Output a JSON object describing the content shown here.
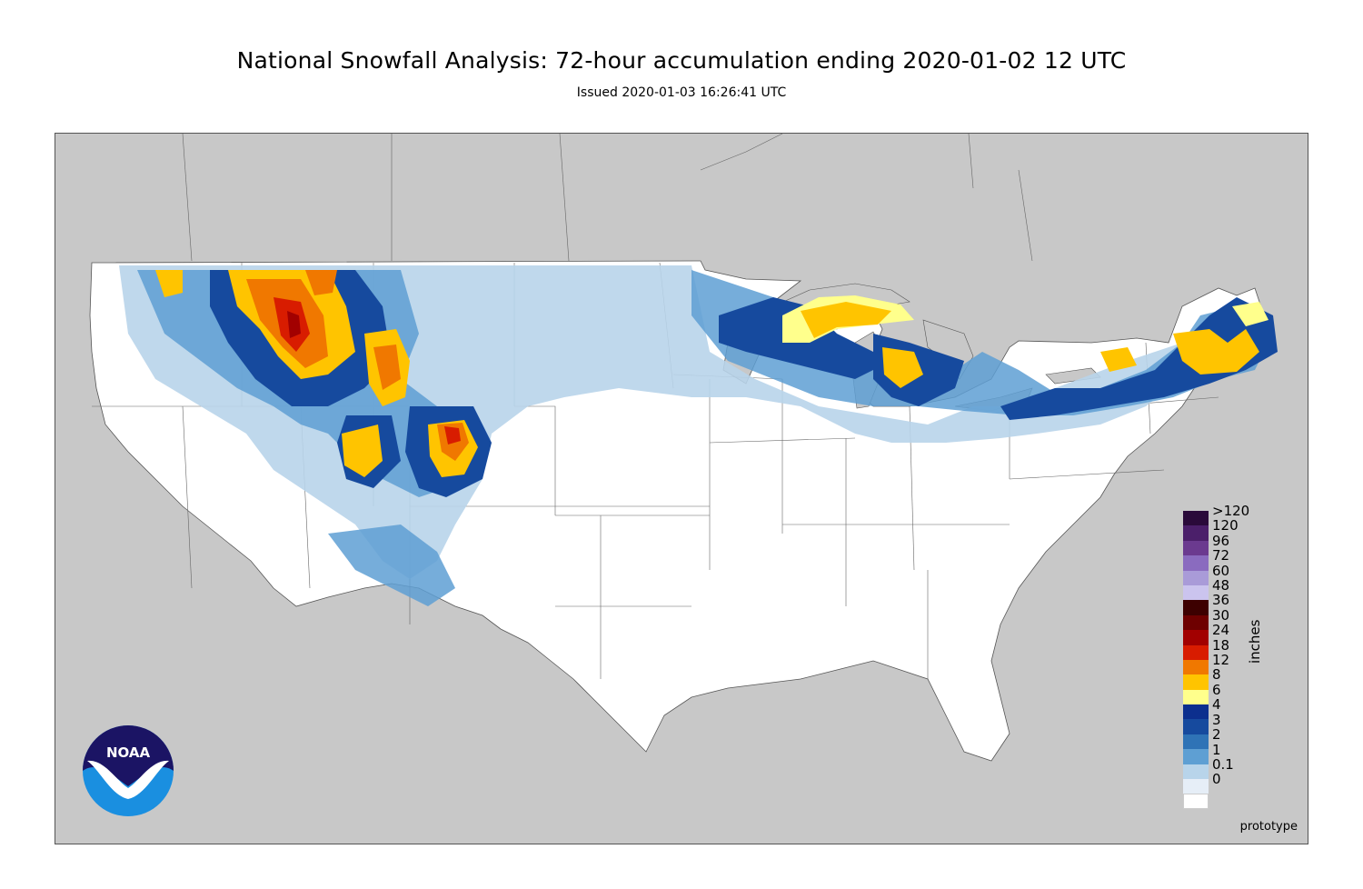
{
  "header": {
    "title": "National Snowfall Analysis: 72-hour accumulation ending 2020-01-02 12 UTC",
    "subtitle": "Issued 2020-01-03 16:26:41 UTC"
  },
  "legend": {
    "unit": "inches",
    "levels": [
      {
        "label": ">120",
        "color": "#2a0a3a"
      },
      {
        "label": "120",
        "color": "#4b1f6a"
      },
      {
        "label": "96",
        "color": "#6b3a8f"
      },
      {
        "label": "72",
        "color": "#8a6bbf"
      },
      {
        "label": "60",
        "color": "#a99bd8"
      },
      {
        "label": "48",
        "color": "#cbc4ee"
      },
      {
        "label": "36",
        "color": "#3d0000"
      },
      {
        "label": "30",
        "color": "#6e0000"
      },
      {
        "label": "24",
        "color": "#a20000"
      },
      {
        "label": "18",
        "color": "#d81c00"
      },
      {
        "label": "12",
        "color": "#f07800"
      },
      {
        "label": "8",
        "color": "#ffc400"
      },
      {
        "label": "6",
        "color": "#ffff8c"
      },
      {
        "label": "4",
        "color": "#0c2f8e"
      },
      {
        "label": "3",
        "color": "#164a9e"
      },
      {
        "label": "2",
        "color": "#2f73b6"
      },
      {
        "label": "1",
        "color": "#5e9fd3"
      },
      {
        "label": "0.1",
        "color": "#b8d4ea"
      },
      {
        "label": "0",
        "color": "#e6eef7"
      }
    ],
    "bottom_color": "#ffffff"
  },
  "footnote": "prototype",
  "logo": {
    "text": "NOAA",
    "icon": "noaa-logo-icon"
  },
  "colors": {
    "land_outside": "#c8c8c8",
    "conus": "#ffffff",
    "border": "#444444"
  }
}
